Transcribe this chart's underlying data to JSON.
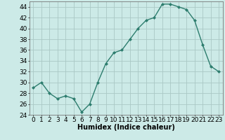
{
  "x": [
    0,
    1,
    2,
    3,
    4,
    5,
    6,
    7,
    8,
    9,
    10,
    11,
    12,
    13,
    14,
    15,
    16,
    17,
    18,
    19,
    20,
    21,
    22,
    23
  ],
  "y": [
    29,
    30,
    28,
    27,
    27.5,
    27,
    24.5,
    26,
    30,
    33.5,
    35.5,
    36,
    38,
    40,
    41.5,
    42,
    44.5,
    44.5,
    44,
    43.5,
    41.5,
    37,
    33,
    32
  ],
  "line_color": "#2d7d6e",
  "marker": "D",
  "marker_size": 2.0,
  "bg_color": "#cceae7",
  "grid_color": "#aac8c5",
  "xlabel": "Humidex (Indice chaleur)",
  "ylim": [
    24,
    45
  ],
  "xlim": [
    -0.5,
    23.5
  ],
  "yticks": [
    24,
    26,
    28,
    30,
    32,
    34,
    36,
    38,
    40,
    42,
    44
  ],
  "xticks": [
    0,
    1,
    2,
    3,
    4,
    5,
    6,
    7,
    8,
    9,
    10,
    11,
    12,
    13,
    14,
    15,
    16,
    17,
    18,
    19,
    20,
    21,
    22,
    23
  ],
  "xlabel_fontsize": 7,
  "tick_fontsize": 6.5,
  "line_width": 1.0
}
